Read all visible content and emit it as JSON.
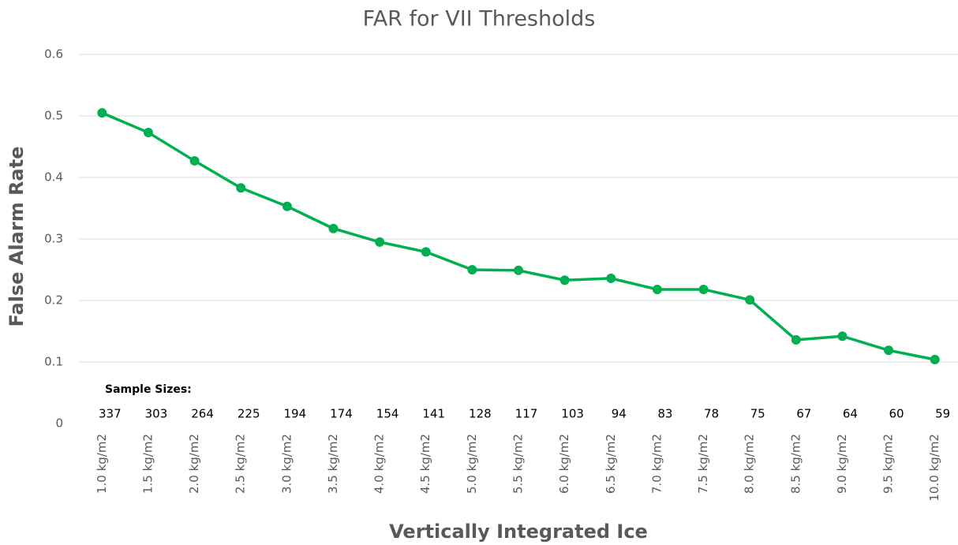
{
  "chart_data": {
    "type": "line",
    "title": "FAR for VII Thresholds",
    "x_label": "Vertically Integrated Ice",
    "y_label": "False Alarm Rate",
    "categories": [
      "1.0 kg/m2",
      "1.5 kg/m2",
      "2.0 kg/m2",
      "2.5 kg/m2",
      "3.0 kg/m2",
      "3.5 kg/m2",
      "4.0 kg/m2",
      "4.5 kg/m2",
      "5.0 kg/m2",
      "5.5 kg/m2",
      "6.0 kg/m2",
      "6.5 kg/m2",
      "7.0 kg/m2",
      "7.5 kg/m2",
      "8.0 kg/m2",
      "8.5 kg/m2",
      "9.0 kg/m2",
      "9.5 kg/m2",
      "10.0 kg/m2"
    ],
    "series": [
      {
        "name": "FAR",
        "color": "#00b050",
        "values": [
          0.505,
          0.473,
          0.427,
          0.383,
          0.353,
          0.317,
          0.295,
          0.279,
          0.25,
          0.249,
          0.233,
          0.236,
          0.218,
          0.218,
          0.201,
          0.136,
          0.142,
          0.119,
          0.104
        ]
      }
    ],
    "sample_sizes_label": "Sample Sizes:",
    "sample_sizes": [
      337,
      303,
      264,
      225,
      194,
      174,
      154,
      141,
      128,
      117,
      103,
      94,
      83,
      78,
      75,
      67,
      64,
      60,
      59
    ],
    "ylim": [
      0,
      0.6
    ],
    "yticks": [
      0,
      0.1,
      0.2,
      0.3,
      0.4,
      0.5,
      0.6
    ],
    "grid": true,
    "legend": false
  }
}
